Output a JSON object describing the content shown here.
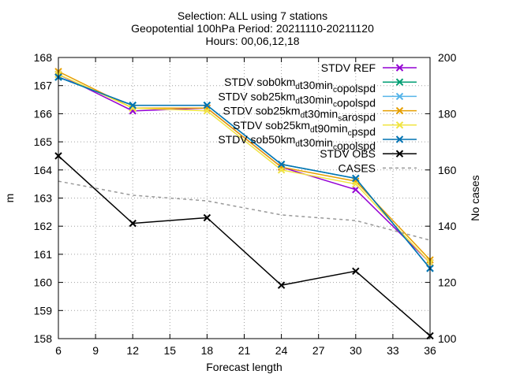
{
  "title_lines": [
    "Selection: ALL using     7 stations",
    "Geopotential 100hPa   Period: 20211110-20211120",
    "Hours: 00,06,12,18"
  ],
  "chart_data": {
    "type": "line",
    "xlabel": "Forecast length",
    "ylabel": "m",
    "y2label": "No cases",
    "xlim": [
      6,
      36
    ],
    "ylim": [
      158,
      168
    ],
    "y2lim": [
      100,
      200
    ],
    "xticks": [
      6,
      9,
      12,
      15,
      18,
      21,
      24,
      27,
      30,
      33,
      36
    ],
    "yticks": [
      158,
      159,
      160,
      161,
      162,
      163,
      164,
      165,
      166,
      167,
      168
    ],
    "y2ticks": [
      100,
      120,
      140,
      160,
      180,
      200
    ],
    "grid": true,
    "legend_position": "top-right",
    "x": [
      6,
      12,
      18,
      24,
      30,
      36
    ],
    "series": [
      {
        "name": "STDV REF",
        "color": "#9400d3",
        "marker": "x",
        "dash": "",
        "axis": "y1",
        "values": [
          167.4,
          166.1,
          166.2,
          164.1,
          163.3,
          160.7
        ]
      },
      {
        "name": "STDV sob0km_d t30min_c opolspd",
        "color": "#009e73",
        "marker": "x",
        "dash": "",
        "axis": "y1",
        "values": [
          167.3,
          166.3,
          166.3,
          164.2,
          163.7,
          160.5
        ]
      },
      {
        "name": "STDV sob25km_d t30min_c opolspd",
        "color": "#56b4e9",
        "marker": "x",
        "dash": "",
        "axis": "y1",
        "values": [
          167.3,
          166.3,
          166.3,
          164.2,
          163.7,
          160.5
        ]
      },
      {
        "name": "STDV sob25km_d t30min_s arospd",
        "color": "#e69f00",
        "marker": "x",
        "dash": "",
        "axis": "y1",
        "values": [
          167.5,
          166.2,
          166.2,
          164.1,
          163.6,
          160.8
        ]
      },
      {
        "name": "STDV sob25km_d t90min_c pspd",
        "color": "#f0e442",
        "marker": "x",
        "dash": "",
        "axis": "y1",
        "values": [
          167.4,
          166.2,
          166.1,
          164.0,
          163.5,
          160.7
        ]
      },
      {
        "name": "STDV sob50km_d t30min_c opolspd",
        "color": "#0072b2",
        "marker": "x",
        "dash": "",
        "axis": "y1",
        "values": [
          167.3,
          166.3,
          166.3,
          164.2,
          163.7,
          160.5
        ]
      },
      {
        "name": "STDV OBS",
        "color": "#000000",
        "marker": "x",
        "dash": "",
        "axis": "y1",
        "values": [
          164.5,
          162.1,
          162.3,
          159.9,
          160.4,
          158.1
        ]
      },
      {
        "name": "CASES",
        "color": "#999999",
        "marker": "",
        "dash": "4,4",
        "axis": "y2",
        "values": [
          156,
          151,
          149,
          144,
          142,
          135
        ]
      }
    ],
    "legend_entries": [
      {
        "parts": [
          [
            "STDV REF",
            ""
          ]
        ]
      },
      {
        "parts": [
          [
            "STDV sob0km",
            ""
          ],
          [
            "d",
            "sub"
          ],
          [
            "t30min",
            ""
          ],
          [
            "c",
            "sub"
          ],
          [
            "opolspd",
            ""
          ]
        ]
      },
      {
        "parts": [
          [
            "STDV sob25km",
            ""
          ],
          [
            "d",
            "sub"
          ],
          [
            "t30min",
            ""
          ],
          [
            "c",
            "sub"
          ],
          [
            "opolspd",
            ""
          ]
        ]
      },
      {
        "parts": [
          [
            "STDV sob25km",
            ""
          ],
          [
            "d",
            "sub"
          ],
          [
            "t30min",
            ""
          ],
          [
            "s",
            "sub"
          ],
          [
            "arospd",
            ""
          ]
        ]
      },
      {
        "parts": [
          [
            "STDV sob25km",
            ""
          ],
          [
            "d",
            "sub"
          ],
          [
            "t90min",
            ""
          ],
          [
            "c",
            "sub"
          ],
          [
            "pspd",
            ""
          ]
        ]
      },
      {
        "parts": [
          [
            "STDV sob50km",
            ""
          ],
          [
            "d",
            "sub"
          ],
          [
            "t30min",
            ""
          ],
          [
            "c",
            "sub"
          ],
          [
            "opolspd",
            ""
          ]
        ]
      },
      {
        "parts": [
          [
            "STDV OBS",
            ""
          ]
        ]
      },
      {
        "parts": [
          [
            "CASES",
            ""
          ]
        ]
      }
    ]
  }
}
